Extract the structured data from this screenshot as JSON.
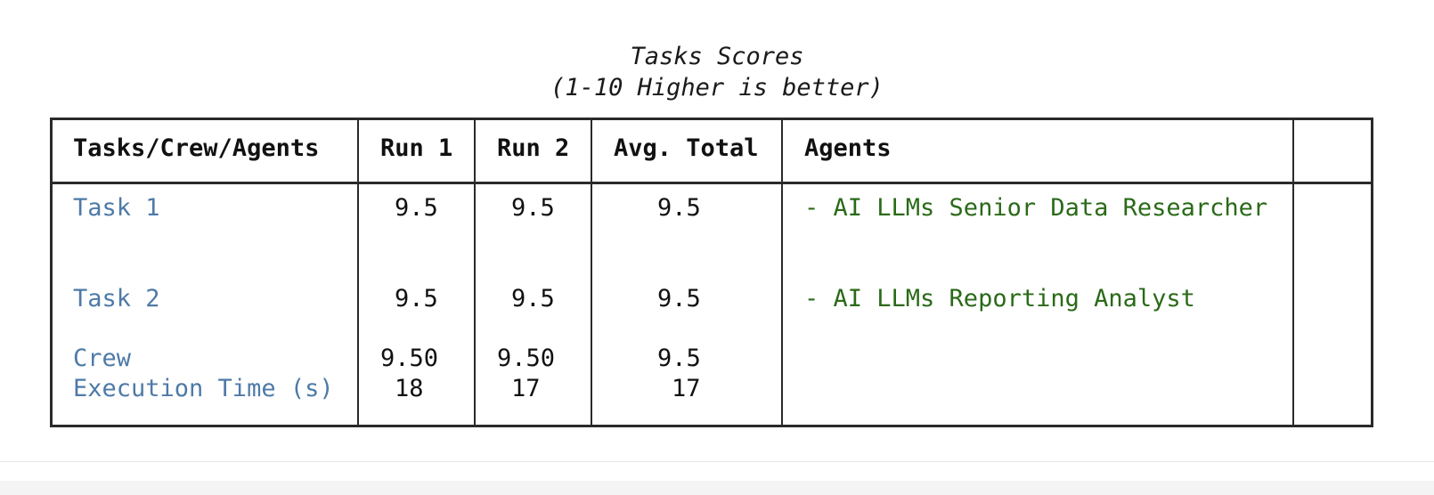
{
  "caption": {
    "line1": "Tasks Scores",
    "line2": "(1-10 Higher is better)"
  },
  "table": {
    "headers": [
      "Tasks/Crew/Agents",
      "Run 1",
      "Run 2",
      "Avg. Total",
      "Agents",
      ""
    ],
    "rows": [
      {
        "label": "Task 1",
        "run1": "9.5",
        "run2": "9.5",
        "avg": "9.5",
        "agents": "- AI LLMs Senior Data Researcher"
      },
      {
        "label": "Task 2",
        "run1": "9.5",
        "run2": "9.5",
        "avg": "9.5",
        "agents": "- AI LLMs Reporting Analyst"
      },
      {
        "label": "Crew",
        "run1": "9.50",
        "run2": "9.50",
        "avg": "9.5",
        "agents": ""
      },
      {
        "label": "Execution Time (s)",
        "run1": "18",
        "run2": "17",
        "avg": "17",
        "agents": ""
      }
    ]
  },
  "colors": {
    "task_label": "#4e7aa8",
    "agent_text": "#2a6a18",
    "border": "#2a2a2a"
  }
}
